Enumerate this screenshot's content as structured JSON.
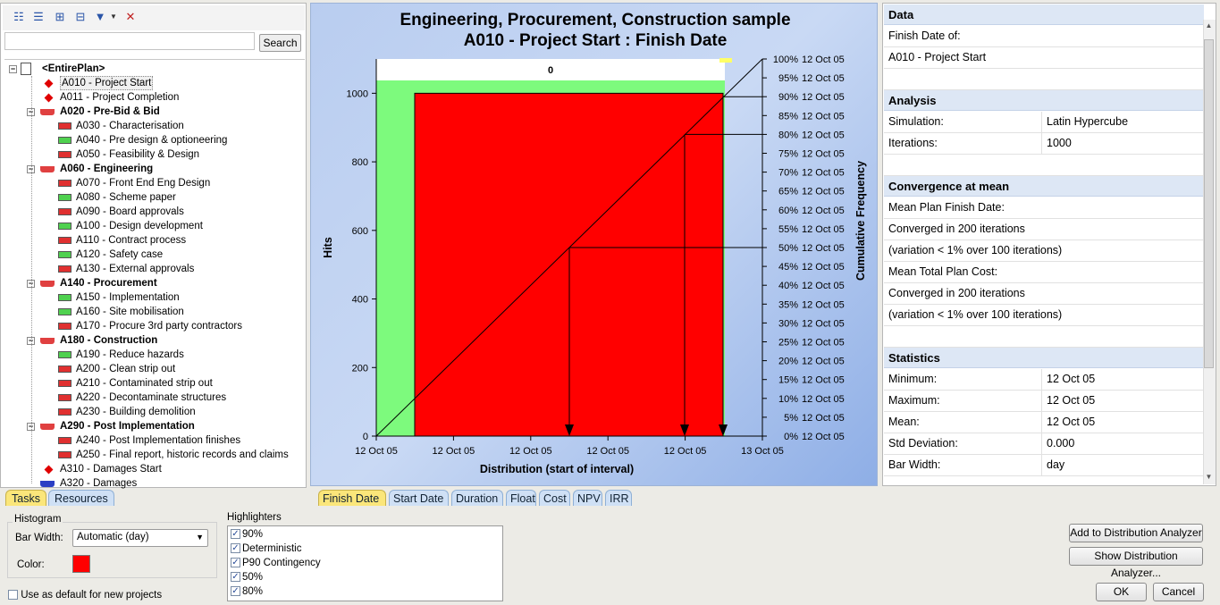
{
  "toolbar": {
    "icons": [
      "tree-view-icon",
      "list-view-icon",
      "expand-all-icon",
      "collapse-all-icon",
      "filter-icon",
      "dropdown-arrow-icon",
      "clear-filter-icon"
    ],
    "search_placeholder": "",
    "search_label": "Search"
  },
  "tree": {
    "items": [
      {
        "label": "<EntirePlan>",
        "level": 0,
        "type": "root",
        "bold": true
      },
      {
        "label": "A010 - Project Start",
        "level": 1,
        "type": "milestone",
        "selected": true
      },
      {
        "label": "A011 - Project Completion",
        "level": 1,
        "type": "milestone"
      },
      {
        "label": "A020 - Pre-Bid & Bid",
        "level": 1,
        "type": "summary",
        "bold": true
      },
      {
        "label": "A030 - Characterisation",
        "level": 2,
        "type": "red"
      },
      {
        "label": "A040 - Pre design & optioneering",
        "level": 2,
        "type": "green"
      },
      {
        "label": "A050 - Feasibility & Design",
        "level": 2,
        "type": "red"
      },
      {
        "label": "A060 - Engineering",
        "level": 1,
        "type": "summary",
        "bold": true
      },
      {
        "label": "A070 - Front End Eng Design",
        "level": 2,
        "type": "red"
      },
      {
        "label": "A080 - Scheme paper",
        "level": 2,
        "type": "green"
      },
      {
        "label": "A090 - Board approvals",
        "level": 2,
        "type": "red"
      },
      {
        "label": "A100 - Design development",
        "level": 2,
        "type": "green"
      },
      {
        "label": "A110 - Contract process",
        "level": 2,
        "type": "red"
      },
      {
        "label": "A120 - Safety case",
        "level": 2,
        "type": "green"
      },
      {
        "label": "A130 - External approvals",
        "level": 2,
        "type": "red"
      },
      {
        "label": "A140 - Procurement",
        "level": 1,
        "type": "summary",
        "bold": true
      },
      {
        "label": "A150 - Implementation",
        "level": 2,
        "type": "green"
      },
      {
        "label": "A160 - Site mobilisation",
        "level": 2,
        "type": "green"
      },
      {
        "label": "A170 - Procure 3rd party contractors",
        "level": 2,
        "type": "red"
      },
      {
        "label": "A180 - Construction",
        "level": 1,
        "type": "summary",
        "bold": true
      },
      {
        "label": "A190 - Reduce hazards",
        "level": 2,
        "type": "green"
      },
      {
        "label": "A200 - Clean strip out",
        "level": 2,
        "type": "red"
      },
      {
        "label": "A210 - Contaminated strip out",
        "level": 2,
        "type": "red"
      },
      {
        "label": "A220 - Decontaminate structures",
        "level": 2,
        "type": "red"
      },
      {
        "label": "A230 - Building demolition",
        "level": 2,
        "type": "red"
      },
      {
        "label": "A290 - Post Implementation",
        "level": 1,
        "type": "summary",
        "bold": true
      },
      {
        "label": "A240 - Post Implementation finishes",
        "level": 2,
        "type": "red"
      },
      {
        "label": "A250 - Final report, historic records and claims",
        "level": 2,
        "type": "red"
      },
      {
        "label": "A310 - Damages Start",
        "level": 1,
        "type": "milestone"
      },
      {
        "label": "A320 - Damages",
        "level": 1,
        "type": "summary-blue"
      }
    ]
  },
  "left_tabs": [
    "Tasks",
    "Resources"
  ],
  "chart_tabs": [
    "Finish Date",
    "Start Date",
    "Duration",
    "Float",
    "Cost",
    "NPV",
    "IRR"
  ],
  "chart_data": {
    "type": "bar",
    "title": "Engineering, Procurement, Construction sample",
    "subtitle": "A010 - Project Start : Finish Date",
    "xlabel": "Distribution (start of interval)",
    "ylabel": "Hits",
    "y2label": "Cumulative Frequency",
    "x_ticks": [
      "12 Oct 05",
      "12 Oct 05",
      "12 Oct 05",
      "12 Oct 05",
      "12 Oct 05",
      "13 Oct 05"
    ],
    "y_ticks": [
      0,
      200,
      400,
      600,
      800,
      1000
    ],
    "ylim": [
      0,
      1100
    ],
    "y2_ticks": [
      {
        "pct": "100%",
        "date": "12 Oct 05"
      },
      {
        "pct": "95%",
        "date": "12 Oct 05"
      },
      {
        "pct": "90%",
        "date": "12 Oct 05"
      },
      {
        "pct": "85%",
        "date": "12 Oct 05"
      },
      {
        "pct": "80%",
        "date": "12 Oct 05"
      },
      {
        "pct": "75%",
        "date": "12 Oct 05"
      },
      {
        "pct": "70%",
        "date": "12 Oct 05"
      },
      {
        "pct": "65%",
        "date": "12 Oct 05"
      },
      {
        "pct": "60%",
        "date": "12 Oct 05"
      },
      {
        "pct": "55%",
        "date": "12 Oct 05"
      },
      {
        "pct": "50%",
        "date": "12 Oct 05"
      },
      {
        "pct": "45%",
        "date": "12 Oct 05"
      },
      {
        "pct": "40%",
        "date": "12 Oct 05"
      },
      {
        "pct": "35%",
        "date": "12 Oct 05"
      },
      {
        "pct": "30%",
        "date": "12 Oct 05"
      },
      {
        "pct": "25%",
        "date": "12 Oct 05"
      },
      {
        "pct": "20%",
        "date": "12 Oct 05"
      },
      {
        "pct": "15%",
        "date": "12 Oct 05"
      },
      {
        "pct": "10%",
        "date": "12 Oct 05"
      },
      {
        "pct": "5%",
        "date": "12 Oct 05"
      },
      {
        "pct": "0%",
        "date": "12 Oct 05"
      }
    ],
    "bar_value": 1000,
    "bar_label": "0",
    "highlight_percentiles": [
      50,
      80,
      90
    ],
    "colors": {
      "bar": "#ff0000",
      "green_band": "#7dfa7d",
      "background_band": "#ffffff"
    }
  },
  "data_panel": {
    "sections": [
      {
        "header": "Data",
        "rows": [
          {
            "key": "Finish Date of:"
          },
          {
            "key": "A010 - Project Start"
          },
          {
            "key": ""
          }
        ]
      },
      {
        "header": "Analysis",
        "rows": [
          {
            "key": "Simulation:",
            "value": "Latin Hypercube"
          },
          {
            "key": "Iterations:",
            "value": "1000"
          },
          {
            "key": ""
          }
        ]
      },
      {
        "header": "Convergence at mean",
        "rows": [
          {
            "key": "Mean Plan Finish Date:"
          },
          {
            "key": "Converged in 200 iterations"
          },
          {
            "key": "(variation < 1% over 100 iterations)"
          },
          {
            "key": "Mean Total Plan Cost:"
          },
          {
            "key": "Converged in 200 iterations"
          },
          {
            "key": "(variation < 1% over 100 iterations)"
          },
          {
            "key": ""
          }
        ]
      },
      {
        "header": "Statistics",
        "rows": [
          {
            "key": "Minimum:",
            "value": "12 Oct 05"
          },
          {
            "key": "Maximum:",
            "value": "12 Oct 05"
          },
          {
            "key": "Mean:",
            "value": "12 Oct 05"
          },
          {
            "key": "Std Deviation:",
            "value": "0.000"
          },
          {
            "key": "Bar Width:",
            "value": "day"
          }
        ]
      }
    ]
  },
  "histogram": {
    "group_label": "Histogram",
    "bar_width_label": "Bar Width:",
    "bar_width_value": "Automatic (day)",
    "color_label": "Color:",
    "color": "#ff0000",
    "default_checkbox_label": "Use as default for new projects"
  },
  "highlighters": {
    "label": "Highlighters",
    "items": [
      {
        "label": "90%",
        "checked": true
      },
      {
        "label": "Deterministic",
        "checked": true
      },
      {
        "label": "P90 Contingency",
        "checked": true
      },
      {
        "label": "50%",
        "checked": true
      },
      {
        "label": "80%",
        "checked": true
      }
    ]
  },
  "buttons": {
    "add_to_analyzer": "Add to Distribution Analyzer",
    "show_analyzer": "Show Distribution Analyzer...",
    "ok": "OK",
    "cancel": "Cancel"
  }
}
